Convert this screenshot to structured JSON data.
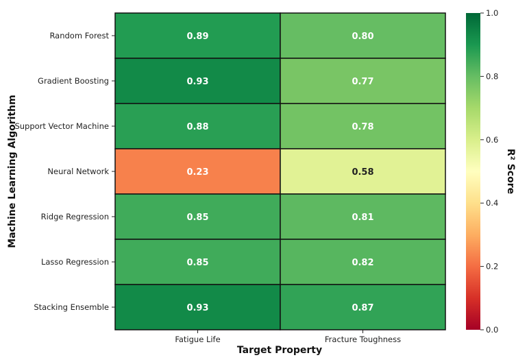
{
  "chart_data": {
    "type": "heatmap",
    "xlabel": "Target Property",
    "ylabel": "Machine Learning Algorithm",
    "columns": [
      "Fatigue Life",
      "Fracture Toughness"
    ],
    "rows": [
      "Random Forest",
      "Gradient Boosting",
      "Support Vector Machine",
      "Neural Network",
      "Ridge Regression",
      "Lasso Regression",
      "Stacking Ensemble"
    ],
    "values": [
      [
        0.89,
        0.8
      ],
      [
        0.93,
        0.77
      ],
      [
        0.88,
        0.78
      ],
      [
        0.23,
        0.58
      ],
      [
        0.85,
        0.81
      ],
      [
        0.85,
        0.82
      ],
      [
        0.93,
        0.87
      ]
    ],
    "cell_labels": [
      [
        "0.89",
        "0.80"
      ],
      [
        "0.93",
        "0.77"
      ],
      [
        "0.88",
        "0.78"
      ],
      [
        "0.23",
        "0.58"
      ],
      [
        "0.85",
        "0.81"
      ],
      [
        "0.85",
        "0.82"
      ],
      [
        "0.93",
        "0.87"
      ]
    ],
    "colorbar": {
      "label": "R² Score",
      "range": [
        0.0,
        1.0
      ],
      "ticks": [
        "0.0",
        "0.2",
        "0.4",
        "0.6",
        "0.8",
        "1.0"
      ],
      "colormap": "RdYlGn",
      "stops": [
        "#a50026",
        "#d73027",
        "#f46d43",
        "#fdae61",
        "#fee08b",
        "#ffffbf",
        "#d9ef8b",
        "#a6d96a",
        "#66bd63",
        "#1a9850",
        "#006837"
      ]
    }
  }
}
